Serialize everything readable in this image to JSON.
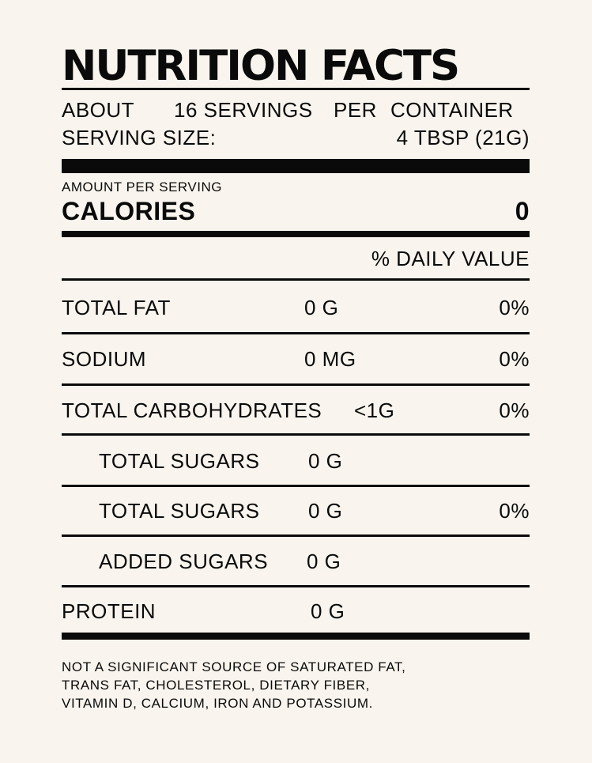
{
  "title": "NUTRITION FACTS",
  "servings": {
    "about": "ABOUT",
    "count": "16 SERVINGS",
    "per": "PER",
    "container": "CONTAINER",
    "size_label": "SERVING SIZE:",
    "size_value": "4 TBSP (21G)"
  },
  "calories": {
    "amount_per_serving": "AMOUNT PER SERVING",
    "label": "CALORIES",
    "value": "0"
  },
  "daily_value_header": "% DAILY VALUE",
  "nutrients": [
    {
      "name": "TOTAL FAT",
      "amount": "0 G",
      "dv": "0%"
    },
    {
      "name": "SODIUM",
      "amount": "0 MG",
      "dv": "0%"
    },
    {
      "name": "TOTAL CARBOHYDRATES",
      "amount": "<1G",
      "dv": "0%"
    },
    {
      "name": "TOTAL SUGARS",
      "amount": "0 G",
      "dv": ""
    },
    {
      "name": "TOTAL SUGARS",
      "amount": "0 G",
      "dv": "0%"
    },
    {
      "name": "ADDED SUGARS",
      "amount": "0 G",
      "dv": ""
    },
    {
      "name": "PROTEIN",
      "amount": "0 G",
      "dv": ""
    }
  ],
  "footnote": [
    "NOT A SIGNIFICANT SOURCE OF SATURATED FAT,",
    "TRANS FAT, CHOLESTEROL, DIETARY FIBER,",
    "VITAMIN D, CALCIUM, IRON AND POTASSIUM."
  ],
  "colors": {
    "background": "#f9f5ee",
    "ink": "#0a0a0a"
  }
}
